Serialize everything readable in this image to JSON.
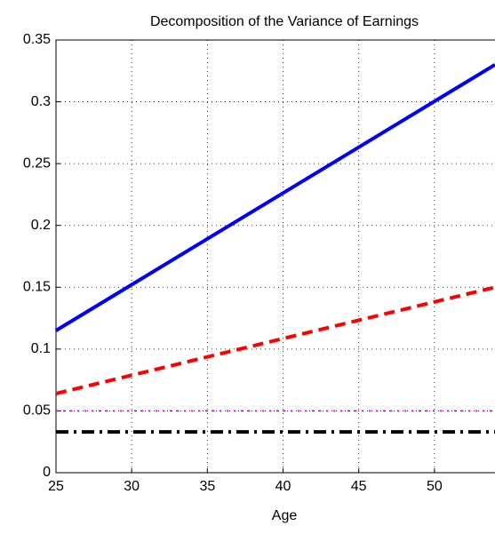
{
  "chart_data": {
    "type": "line",
    "title": "Decomposition of the Variance of Earnings",
    "xlabel": "Age",
    "x": [
      25,
      54
    ],
    "series": [
      {
        "color": "#0000ff",
        "dash": "solid",
        "values": [
          0.115,
          0.33
        ]
      },
      {
        "color": "#ff0000",
        "dash": "dashed",
        "values": [
          0.064,
          0.15
        ]
      },
      {
        "color": "#ff00ff",
        "dash": "dotted",
        "values": [
          0.05,
          0.05
        ]
      },
      {
        "color": "#000000",
        "dash": "dashdot",
        "values": [
          0.033,
          0.033
        ]
      }
    ],
    "xlim": [
      25,
      54
    ],
    "xticks": [
      25,
      30,
      35,
      40,
      45,
      50
    ],
    "ylim": [
      0,
      0.35
    ],
    "yticks": [
      0,
      0.05,
      0.1,
      0.15,
      0.2,
      0.25,
      0.3,
      0.35
    ],
    "grid": true
  }
}
